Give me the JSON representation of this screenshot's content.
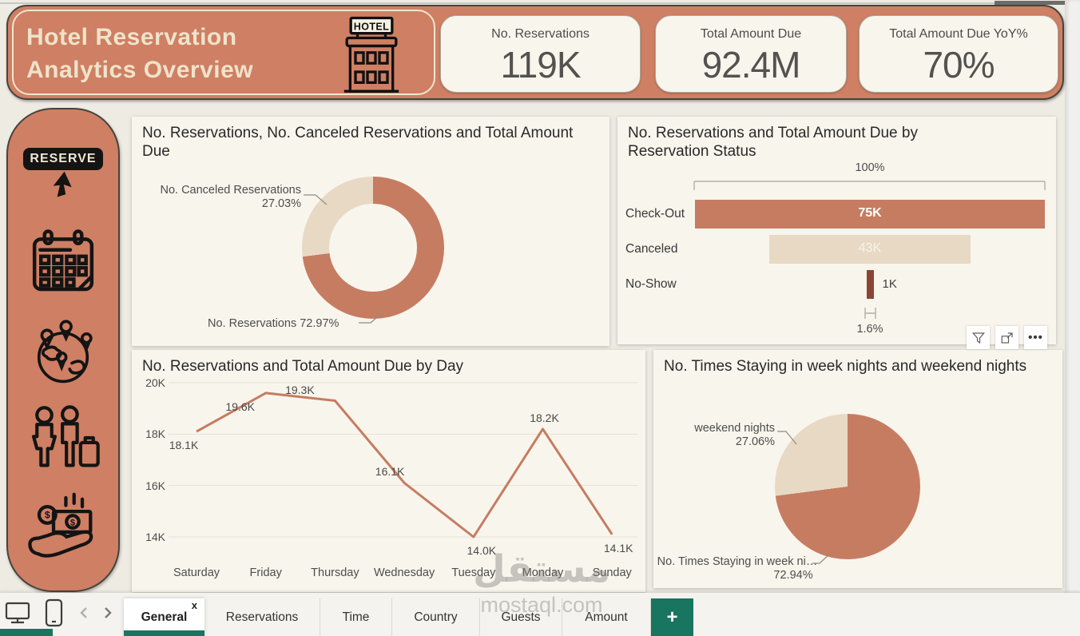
{
  "colors": {
    "salmon": "#CF7F63",
    "chart_salmon": "#C67C61",
    "beige": "#E8D9C4",
    "maroon": "#8B4534",
    "teal": "#177560",
    "card_bg": "#F8F5ED"
  },
  "header": {
    "title_line1": "Hotel Reservation",
    "title_line2": "Analytics Overview",
    "hotel_sign": "HOTEL",
    "kpis": [
      {
        "label": "No. Reservations",
        "value": "119K"
      },
      {
        "label": "Total Amount Due",
        "value": "92.4M"
      },
      {
        "label": "Total Amount Due YoY%",
        "value": "70%"
      }
    ]
  },
  "sidebar": {
    "reserve_label": "RESERVE",
    "icons": [
      "reserve-button",
      "calendar",
      "globe-locations",
      "guests-luggage",
      "money-in-hand"
    ]
  },
  "chart_data": [
    {
      "type": "pie",
      "variant": "donut",
      "title": "No. Reservations, No. Canceled Reservations and Total Amount Due",
      "slices": [
        {
          "label": "No. Reservations",
          "pct": 72.97,
          "color": "#C67C61"
        },
        {
          "label": "No. Canceled Reservations",
          "pct": 27.03,
          "color": "#E8D9C4"
        }
      ],
      "labels": {
        "canceled_line1": "No. Canceled Reservations",
        "canceled_line2": "27.03%",
        "reservations": "No. Reservations 72.97%"
      }
    },
    {
      "type": "bar",
      "variant": "funnel",
      "title": "No. Reservations and Total Amount Due by Reservation Status",
      "categories": [
        "Check-Out",
        "Canceled",
        "No-Show"
      ],
      "values": [
        75,
        43,
        1
      ],
      "value_labels": [
        "75K",
        "43K",
        "1K"
      ],
      "top_label": "100%",
      "bottom_label": "1.6%"
    },
    {
      "type": "line",
      "title": "No. Reservations and Total Amount Due by Day",
      "categories": [
        "Saturday",
        "Friday",
        "Thursday",
        "Wednesday",
        "Tuesday",
        "Monday",
        "Sunday"
      ],
      "values": [
        18.1,
        19.6,
        19.3,
        16.1,
        14.0,
        18.2,
        14.1
      ],
      "value_labels": [
        "18.1K",
        "19.6K",
        "19.3K",
        "16.1K",
        "14.0K",
        "18.2K",
        "14.1K"
      ],
      "label_side": [
        "below",
        "below",
        "above",
        "above",
        "below",
        "above",
        "below"
      ],
      "y_ticks": [
        "20K",
        "18K",
        "16K",
        "14K"
      ],
      "ylim": [
        14,
        20
      ],
      "grid": true
    },
    {
      "type": "pie",
      "title": "No. Times Staying in week nights and weekend nights",
      "slices": [
        {
          "label": "No. Times Staying in week ni…",
          "pct": 72.94,
          "color": "#C67C61"
        },
        {
          "label": "weekend nights",
          "pct": 27.06,
          "color": "#E8D9C4"
        }
      ],
      "labels": {
        "weekend_line1": "weekend nights",
        "weekend_line2": "27.06%",
        "week_line1": "No. Times Staying in week ni…",
        "week_line2": "72.94%"
      }
    }
  ],
  "visual_toolbar": {
    "icons": [
      "filter",
      "focus-mode",
      "more-options"
    ]
  },
  "watermark": {
    "line1": "مستقل",
    "line2": "mostaql.com"
  },
  "footer": {
    "close_label": "x",
    "add_label": "+",
    "tabs": [
      {
        "label": "General",
        "active": true
      },
      {
        "label": "Reservations",
        "active": false
      },
      {
        "label": "Time",
        "active": false
      },
      {
        "label": "Country",
        "active": false
      },
      {
        "label": "Guests",
        "active": false
      },
      {
        "label": "Amount",
        "active": false
      }
    ]
  }
}
